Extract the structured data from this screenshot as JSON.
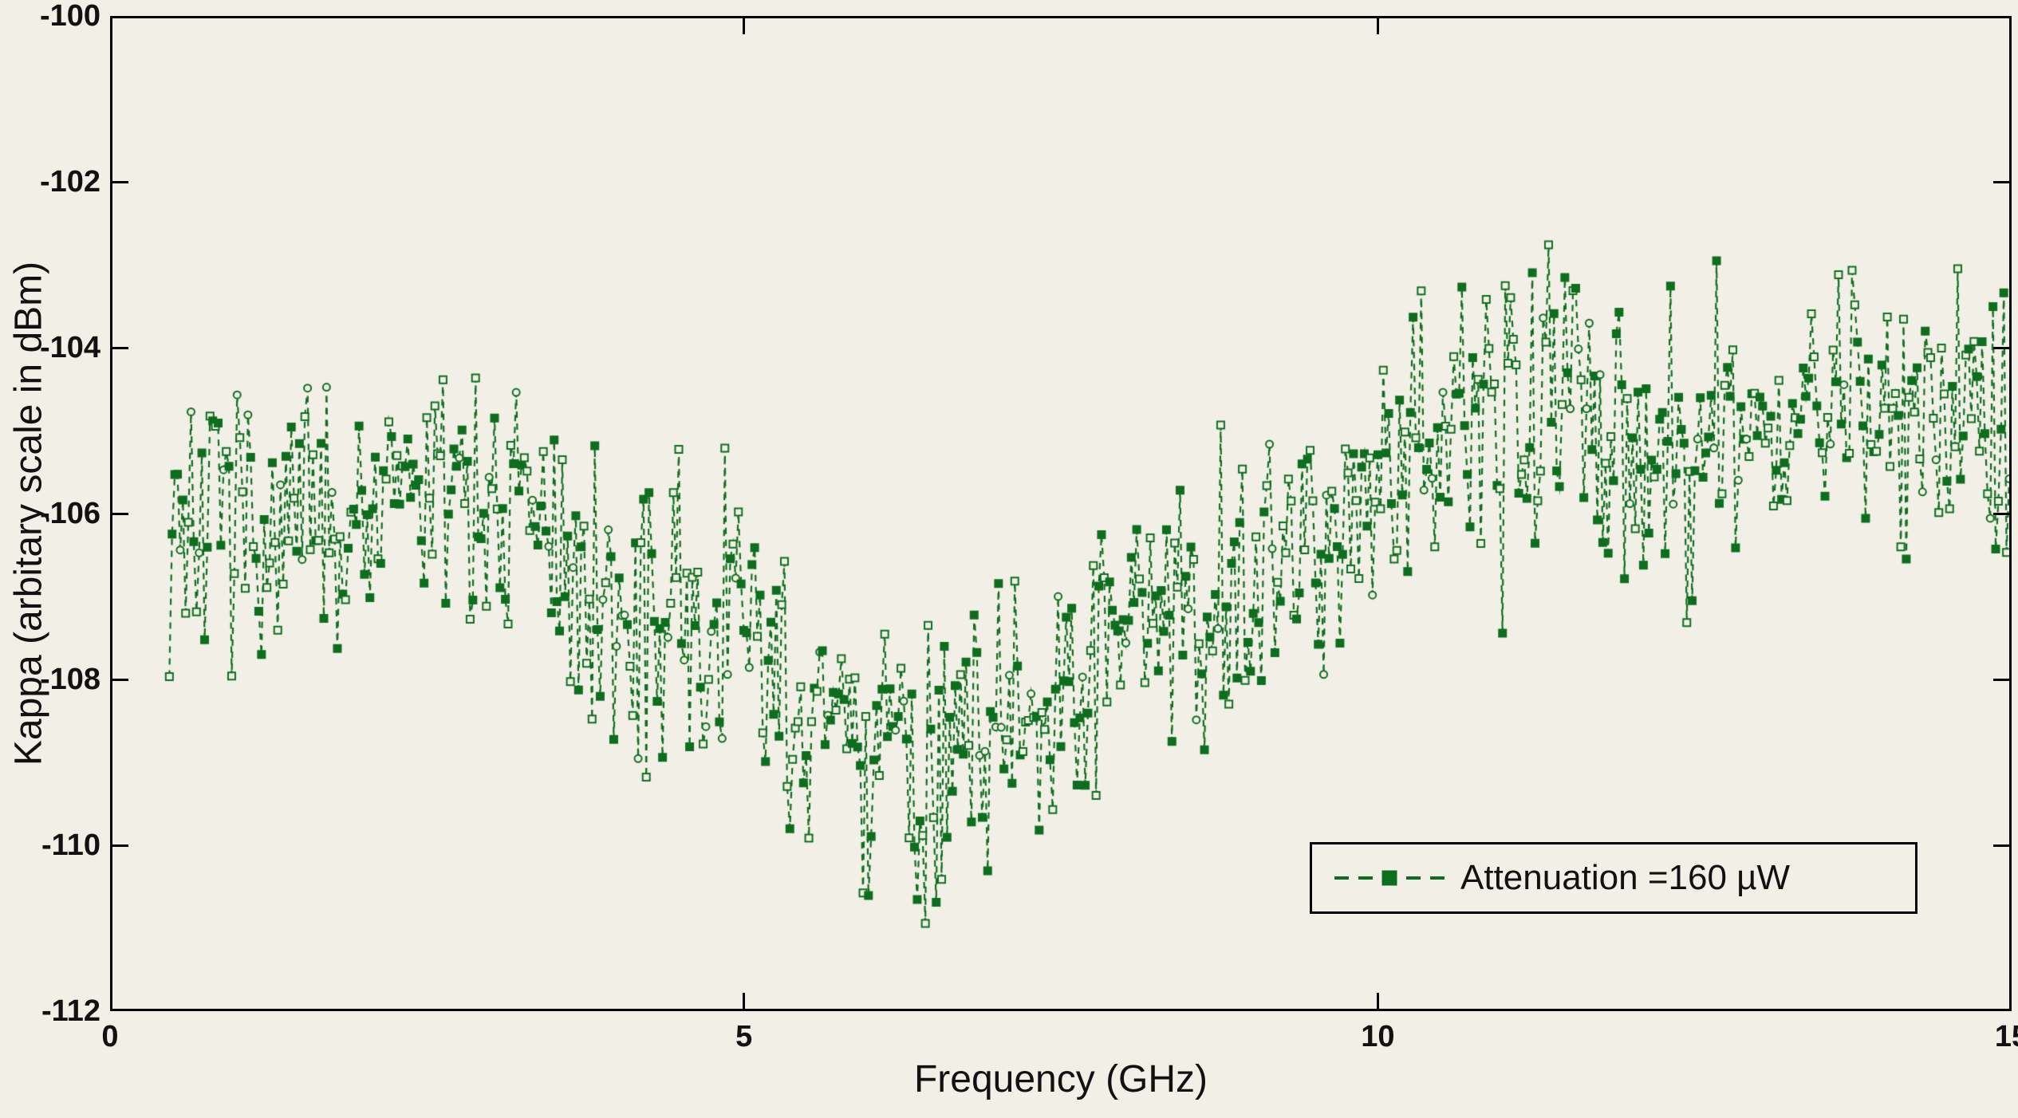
{
  "figure": {
    "background_color": "#f2f0e6",
    "axis_color": "#000000",
    "text_color": "#111111"
  },
  "chart_data": {
    "type": "line",
    "title": "",
    "xlabel": "Frequency (GHz)",
    "ylabel": "Kappa (arbitary scale in dBm)",
    "xlim": [
      0,
      15
    ],
    "ylim": [
      -112,
      -100
    ],
    "xticks": [
      0,
      5,
      10,
      15
    ],
    "yticks": [
      -100,
      -102,
      -104,
      -106,
      -108,
      -110,
      -112
    ],
    "grid": false,
    "legend": {
      "label": "Attenuation =160 µW",
      "position": "lower right",
      "line_style": "dashed",
      "marker": "square"
    },
    "series": [
      {
        "name": "Attenuation =160 µW",
        "color": "#0e6e1f",
        "style": "dashed-with-square-markers",
        "x_start": 0.45,
        "x_end": 15.0,
        "n_points": 680,
        "noise_amplitude_db": 1.35,
        "spike_probability": 0.08,
        "spike_extra_db": 1.6,
        "y_clamp": [
          -111.7,
          -101.9
        ],
        "seed": 7,
        "trend": [
          [
            0.5,
            -106.1
          ],
          [
            1.0,
            -106.0
          ],
          [
            1.5,
            -106.1
          ],
          [
            2.0,
            -105.9
          ],
          [
            2.5,
            -105.8
          ],
          [
            3.0,
            -106.1
          ],
          [
            3.5,
            -106.6
          ],
          [
            4.0,
            -106.9
          ],
          [
            4.5,
            -107.3
          ],
          [
            5.0,
            -107.6
          ],
          [
            5.5,
            -108.6
          ],
          [
            6.0,
            -108.9
          ],
          [
            6.5,
            -109.0
          ],
          [
            7.0,
            -108.5
          ],
          [
            7.5,
            -108.2
          ],
          [
            8.0,
            -107.4
          ],
          [
            8.5,
            -107.1
          ],
          [
            9.0,
            -107.0
          ],
          [
            9.5,
            -106.3
          ],
          [
            10.0,
            -105.3
          ],
          [
            10.5,
            -104.9
          ],
          [
            11.0,
            -104.7
          ],
          [
            11.5,
            -104.6
          ],
          [
            12.0,
            -104.9
          ],
          [
            12.5,
            -105.1
          ],
          [
            13.0,
            -105.0
          ],
          [
            13.5,
            -104.6
          ],
          [
            14.0,
            -104.8
          ],
          [
            14.5,
            -104.7
          ],
          [
            15.0,
            -105.0
          ]
        ]
      }
    ]
  }
}
